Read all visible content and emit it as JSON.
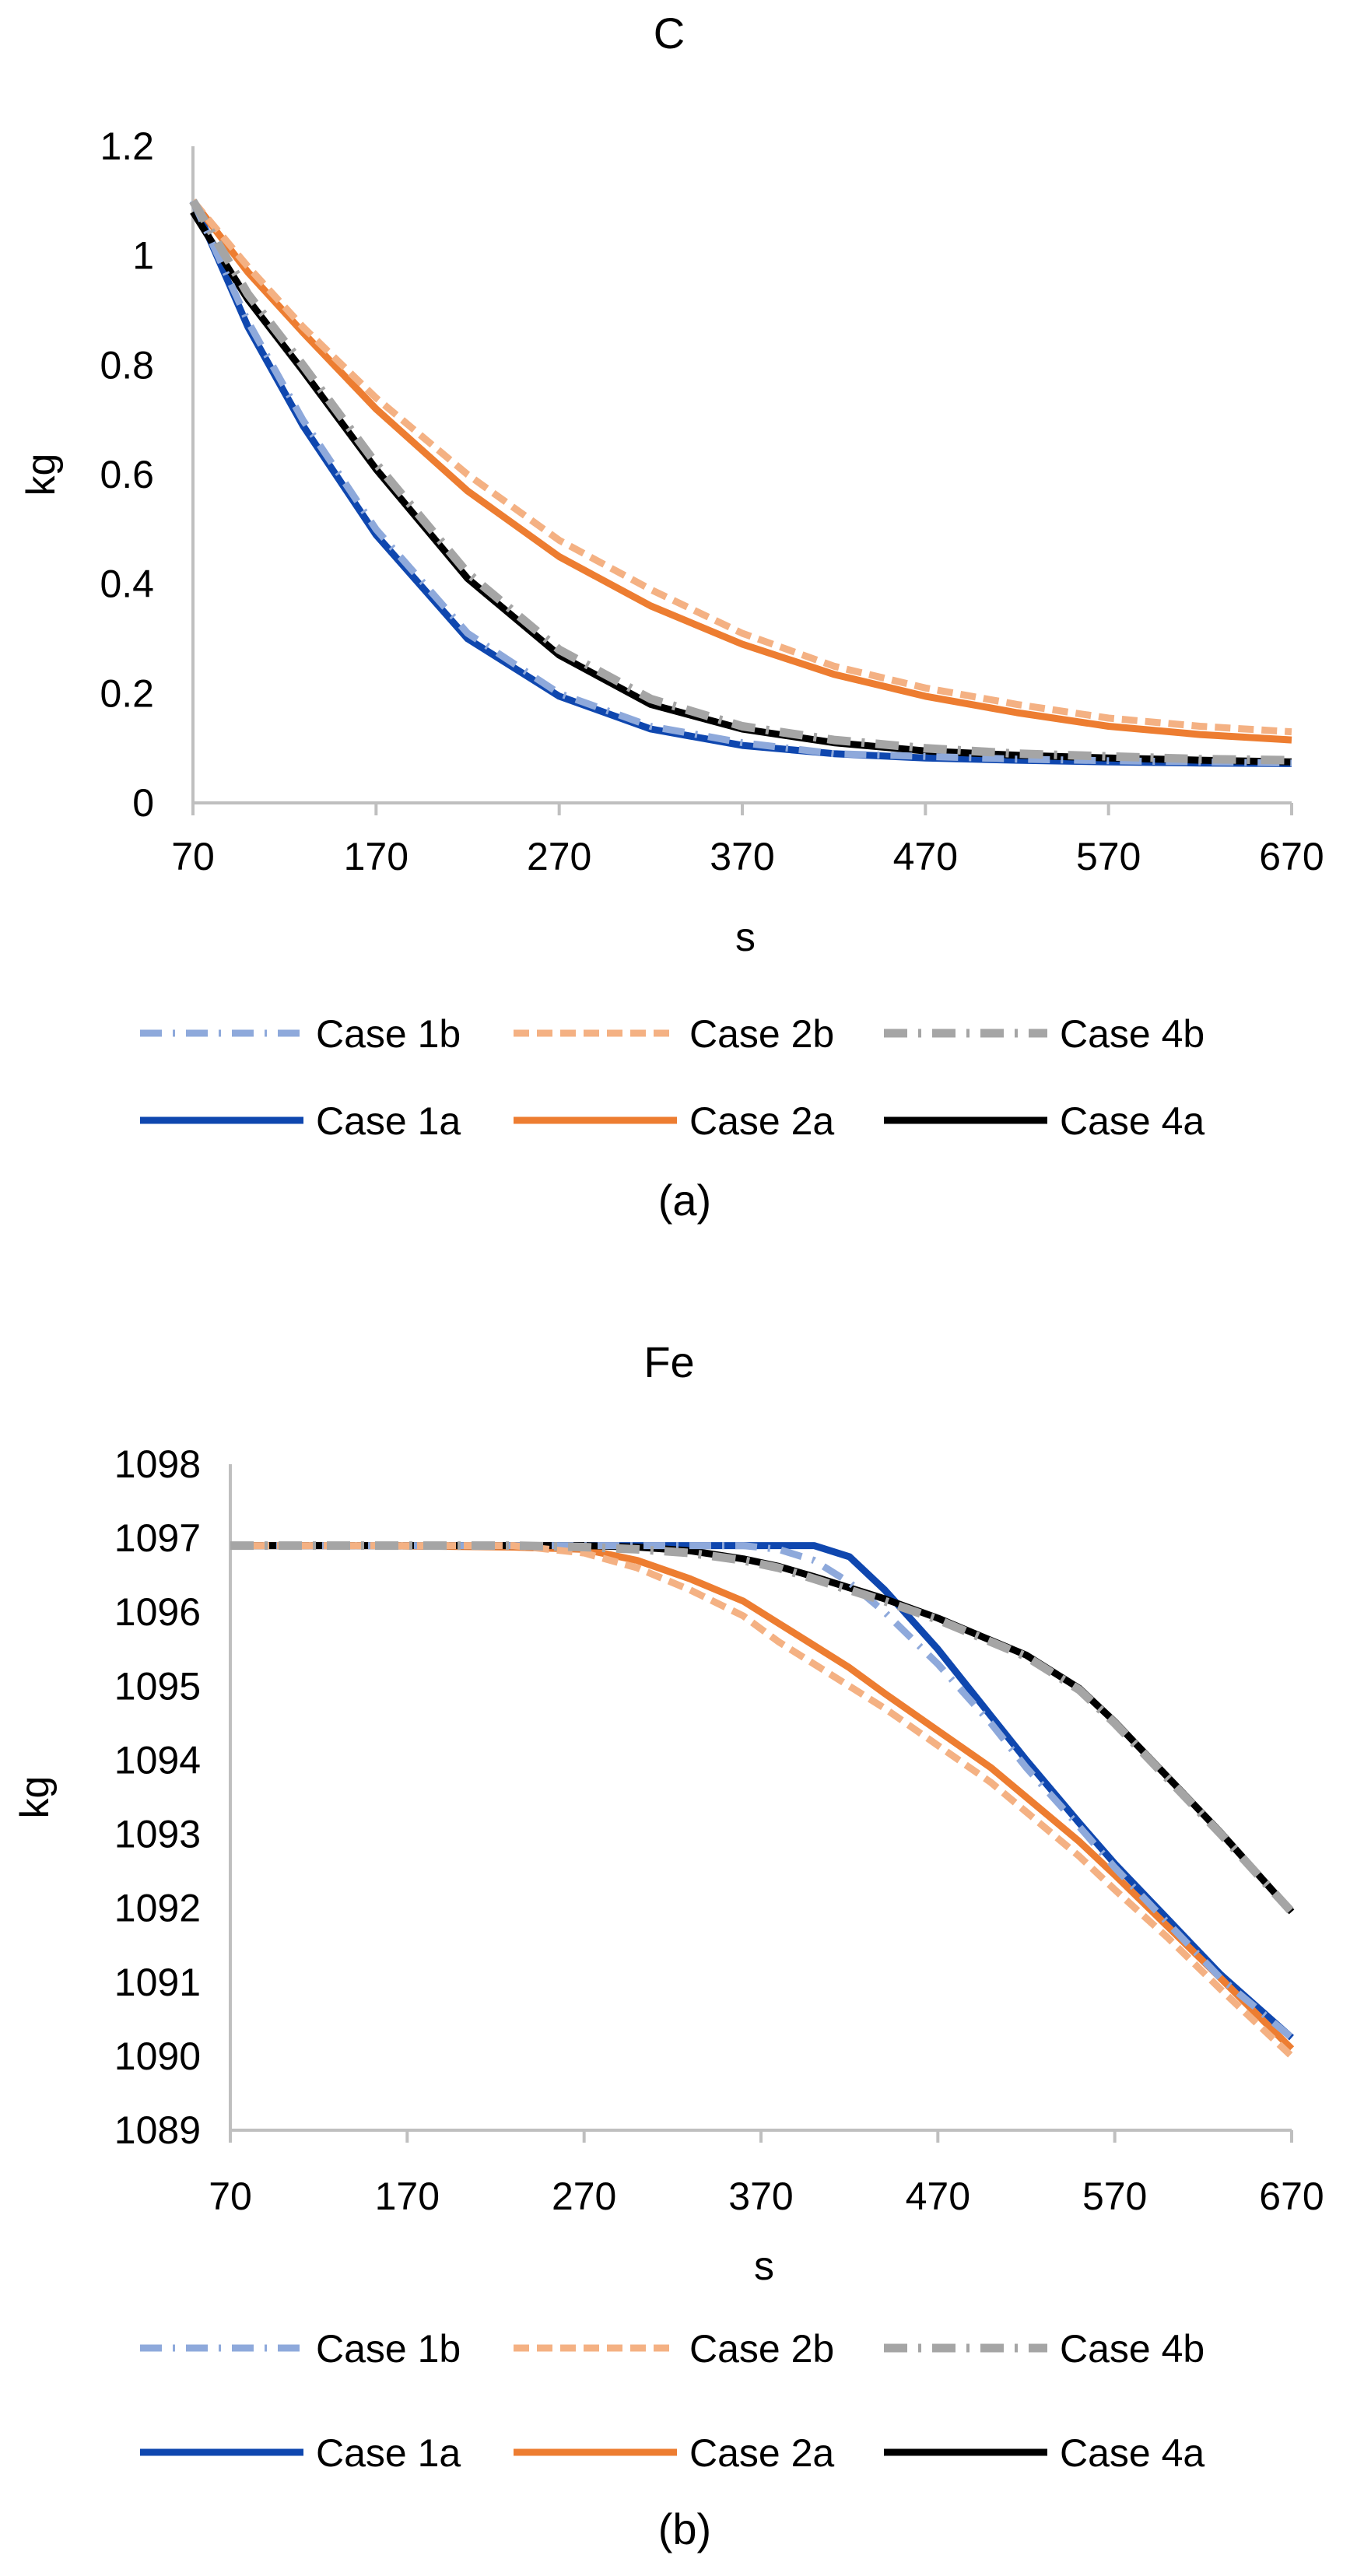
{
  "colors": {
    "case1b": "#8EA9DB",
    "case1a": "#0F47AF",
    "case2b": "#F4B183",
    "case2a": "#ED7D31",
    "case4b": "#A5A5A5",
    "case4a": "#000000",
    "axis": "#BFBFBF"
  },
  "chart_data": [
    {
      "id": "a",
      "type": "line",
      "title": "C",
      "xlabel": "s",
      "ylabel": "kg",
      "caption": "(a)",
      "xlim": [
        70,
        670
      ],
      "ylim": [
        0,
        1.2
      ],
      "xticks": [
        70,
        170,
        270,
        370,
        470,
        570,
        670
      ],
      "yticks": [
        0,
        0.2,
        0.4,
        0.6,
        0.8,
        1,
        1.2
      ],
      "ytick_labels": [
        "0",
        "0.2",
        "0.4",
        "0.6",
        "0.8",
        "1",
        "1.2"
      ],
      "grid": false,
      "legend": "bottom",
      "x": [
        70,
        100,
        130,
        170,
        220,
        270,
        320,
        370,
        420,
        470,
        520,
        570,
        620,
        670
      ],
      "series": [
        {
          "key": "case1b",
          "name": "Case 1b",
          "style": "dashdot",
          "values": [
            1.1,
            0.88,
            0.7,
            0.5,
            0.31,
            0.2,
            0.14,
            0.11,
            0.09,
            0.085,
            0.08,
            0.077,
            0.075,
            0.073
          ]
        },
        {
          "key": "case2b",
          "name": "Case 2b",
          "style": "dash",
          "values": [
            1.1,
            0.98,
            0.87,
            0.74,
            0.6,
            0.48,
            0.39,
            0.31,
            0.25,
            0.21,
            0.18,
            0.155,
            0.14,
            0.13
          ]
        },
        {
          "key": "case4b",
          "name": "Case 4b",
          "style": "dashdot-thick",
          "values": [
            1.1,
            0.93,
            0.8,
            0.62,
            0.42,
            0.28,
            0.19,
            0.14,
            0.115,
            0.1,
            0.09,
            0.085,
            0.08,
            0.078
          ]
        },
        {
          "key": "case1a",
          "name": "Case 1a",
          "style": "solid",
          "values": [
            1.1,
            0.87,
            0.69,
            0.49,
            0.3,
            0.195,
            0.135,
            0.105,
            0.09,
            0.082,
            0.078,
            0.075,
            0.073,
            0.072
          ]
        },
        {
          "key": "case2a",
          "name": "Case 2a",
          "style": "solid",
          "values": [
            1.1,
            0.97,
            0.86,
            0.72,
            0.57,
            0.45,
            0.36,
            0.29,
            0.235,
            0.195,
            0.165,
            0.14,
            0.125,
            0.115
          ]
        },
        {
          "key": "case4a",
          "name": "Case 4a",
          "style": "solid",
          "values": [
            1.08,
            0.92,
            0.79,
            0.61,
            0.41,
            0.27,
            0.18,
            0.135,
            0.11,
            0.095,
            0.087,
            0.082,
            0.078,
            0.075
          ]
        }
      ]
    },
    {
      "id": "b",
      "type": "line",
      "title": "Fe",
      "xlabel": "s",
      "ylabel": "kg",
      "caption": "(b)",
      "xlim": [
        70,
        670
      ],
      "ylim": [
        1089,
        1098
      ],
      "xticks": [
        70,
        170,
        270,
        370,
        470,
        570,
        670
      ],
      "yticks": [
        1089,
        1090,
        1091,
        1092,
        1093,
        1094,
        1095,
        1096,
        1097,
        1098
      ],
      "ytick_labels": [
        "1089",
        "1090",
        "1091",
        "1092",
        "1093",
        "1094",
        "1095",
        "1096",
        "1097",
        "1098"
      ],
      "grid": false,
      "legend": "bottom",
      "x": [
        70,
        150,
        230,
        270,
        300,
        330,
        360,
        380,
        400,
        420,
        440,
        470,
        500,
        520,
        550,
        570,
        600,
        630,
        670
      ],
      "series": [
        {
          "key": "case1b",
          "name": "Case 1b",
          "style": "dashdot",
          "values": [
            1096.9,
            1096.9,
            1096.9,
            1096.9,
            1096.9,
            1096.9,
            1096.9,
            1096.85,
            1096.7,
            1096.4,
            1096.0,
            1095.3,
            1094.5,
            1093.9,
            1093.1,
            1092.55,
            1091.8,
            1091.05,
            1090.25
          ]
        },
        {
          "key": "case2b",
          "name": "Case 2b",
          "style": "dash",
          "values": [
            1096.9,
            1096.9,
            1096.9,
            1096.8,
            1096.6,
            1096.3,
            1095.95,
            1095.6,
            1095.3,
            1095.0,
            1094.7,
            1094.2,
            1093.7,
            1093.3,
            1092.7,
            1092.25,
            1091.6,
            1090.9,
            1090.0
          ]
        },
        {
          "key": "case4b",
          "name": "Case 4b",
          "style": "dashdot-thick",
          "values": [
            1096.9,
            1096.9,
            1096.9,
            1096.88,
            1096.85,
            1096.8,
            1096.7,
            1096.6,
            1096.45,
            1096.3,
            1096.15,
            1095.9,
            1095.6,
            1095.4,
            1094.95,
            1094.5,
            1093.75,
            1093.0,
            1091.95
          ]
        },
        {
          "key": "case1a",
          "name": "Case 1a",
          "style": "solid",
          "values": [
            1096.9,
            1096.9,
            1096.9,
            1096.9,
            1096.9,
            1096.9,
            1096.9,
            1096.9,
            1096.9,
            1096.75,
            1096.3,
            1095.5,
            1094.6,
            1094.0,
            1093.15,
            1092.6,
            1091.85,
            1091.1,
            1090.25
          ]
        },
        {
          "key": "case2a",
          "name": "Case 2a",
          "style": "solid",
          "values": [
            1096.9,
            1096.9,
            1096.88,
            1096.85,
            1096.7,
            1096.45,
            1096.15,
            1095.85,
            1095.55,
            1095.25,
            1094.9,
            1094.4,
            1093.9,
            1093.5,
            1092.9,
            1092.45,
            1091.75,
            1091.05,
            1090.1
          ]
        },
        {
          "key": "case4a",
          "name": "Case 4a",
          "style": "solid",
          "values": [
            1096.9,
            1096.9,
            1096.9,
            1096.9,
            1096.88,
            1096.83,
            1096.72,
            1096.62,
            1096.48,
            1096.33,
            1096.18,
            1095.92,
            1095.62,
            1095.42,
            1094.97,
            1094.52,
            1093.77,
            1093.02,
            1091.95
          ]
        }
      ]
    }
  ]
}
